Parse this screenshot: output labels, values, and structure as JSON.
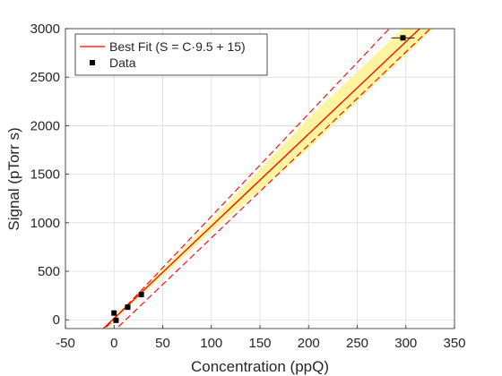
{
  "chart_data": {
    "type": "scatter",
    "xlabel": "Concentration (ppQ)",
    "ylabel": "Signal (pTorr s)",
    "xlim": [
      -50,
      350
    ],
    "ylim": [
      -90,
      3000
    ],
    "xticks": [
      -50,
      0,
      50,
      100,
      150,
      200,
      250,
      300,
      350
    ],
    "yticks": [
      0,
      500,
      1000,
      1500,
      2000,
      2500,
      3000
    ],
    "xtick_labels": [
      "-50",
      "0",
      "50",
      "100",
      "150",
      "200",
      "250",
      "300",
      "350"
    ],
    "ytick_labels": [
      "0",
      "500",
      "1000",
      "1500",
      "2000",
      "2500",
      "3000"
    ],
    "grid": true,
    "legend_position": "top-left",
    "fit": {
      "name": "Best Fit (S = C·9.5 + 15)",
      "slope": 9.5,
      "intercept": 15,
      "color": "#ff0000",
      "band_color": "#fff5a0",
      "band_upper": [
        [
          -10,
          -150
        ],
        [
          0,
          30
        ],
        [
          100,
          1020
        ],
        [
          200,
          2080
        ],
        [
          300,
          3030
        ],
        [
          335,
          3400
        ]
      ],
      "band_lower": [
        [
          -10,
          -210
        ],
        [
          0,
          -10
        ],
        [
          100,
          910
        ],
        [
          200,
          1760
        ],
        [
          300,
          2730
        ],
        [
          335,
          3060
        ]
      ],
      "dashed_upper": [
        [
          -15,
          -150
        ],
        [
          335,
          3550
        ]
      ],
      "dashed_lower": [
        [
          -10,
          -210
        ],
        [
          335,
          3095
        ]
      ]
    },
    "series": [
      {
        "name": "Data",
        "marker": "square",
        "color": "#000000",
        "points": [
          {
            "x": 0,
            "y": 70,
            "xerr": 1,
            "yerr": 25
          },
          {
            "x": 2,
            "y": -5,
            "xerr": 1,
            "yerr": 20
          },
          {
            "x": 14,
            "y": 130,
            "xerr": 3,
            "yerr": 25
          },
          {
            "x": 28,
            "y": 260,
            "xerr": 2,
            "yerr": 30
          },
          {
            "x": 297,
            "y": 2905,
            "xerr": 12,
            "yerr": 20
          }
        ]
      }
    ]
  }
}
